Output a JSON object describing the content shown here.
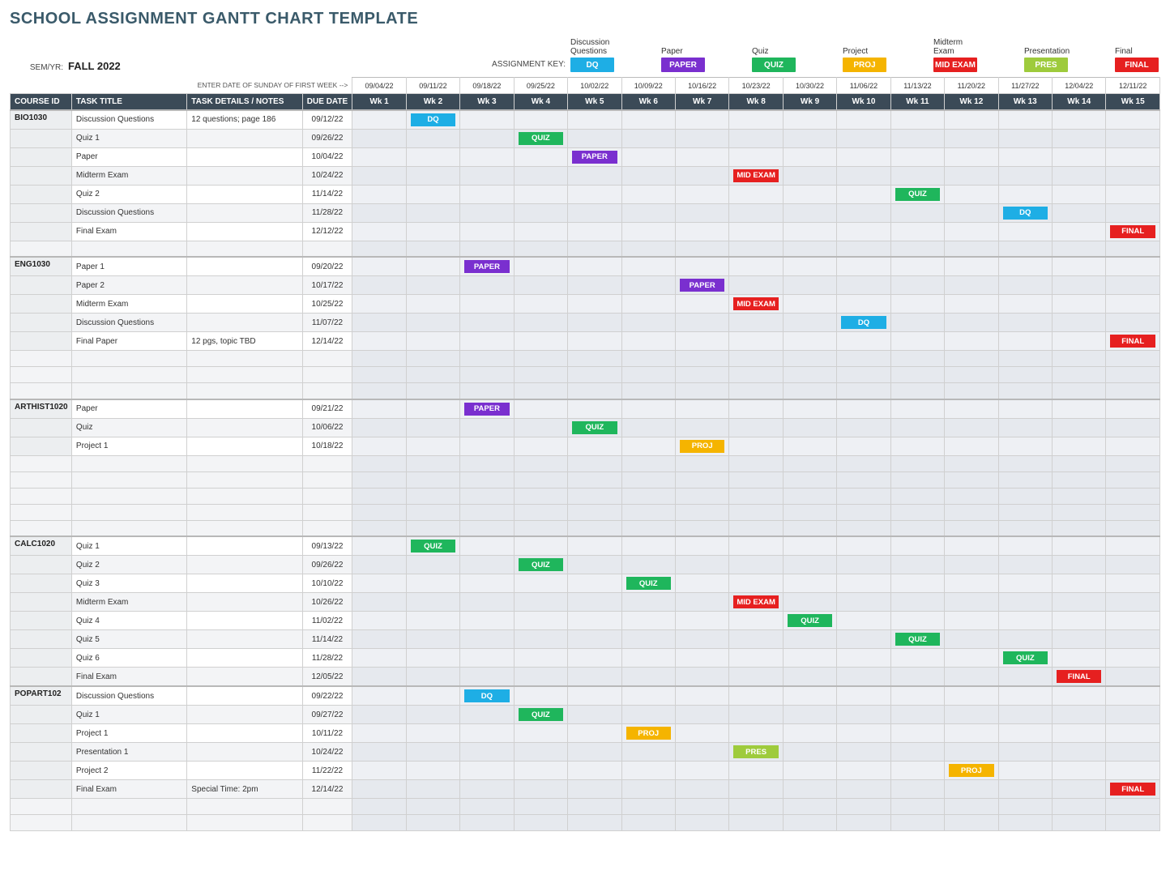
{
  "title": "SCHOOL ASSIGNMENT GANTT CHART TEMPLATE",
  "sem_label": "SEM/YR:",
  "sem_value": "FALL 2022",
  "key_label": "ASSIGNMENT KEY:",
  "first_week_hint": "ENTER DATE OF SUNDAY OF FIRST WEEK -->",
  "assignment_types": [
    {
      "name": "Discussion Questions",
      "code": "DQ",
      "color": "#1eaee5"
    },
    {
      "name": "Paper",
      "code": "PAPER",
      "color": "#7a2fcf"
    },
    {
      "name": "Quiz",
      "code": "QUIZ",
      "color": "#1fb65c"
    },
    {
      "name": "Project",
      "code": "PROJ",
      "color": "#f5b400"
    },
    {
      "name": "Midterm Exam",
      "code": "MID EXAM",
      "color": "#e62020"
    },
    {
      "name": "Presentation",
      "code": "PRES",
      "color": "#9ecb3c"
    },
    {
      "name": "Final",
      "code": "FINAL",
      "color": "#e62020"
    }
  ],
  "headers": {
    "course": "COURSE ID",
    "task": "TASK TITLE",
    "notes": "TASK DETAILS / NOTES",
    "due": "DUE DATE"
  },
  "weeks": [
    {
      "date": "09/04/22",
      "label": "Wk 1"
    },
    {
      "date": "09/11/22",
      "label": "Wk 2"
    },
    {
      "date": "09/18/22",
      "label": "Wk 3"
    },
    {
      "date": "09/25/22",
      "label": "Wk 4"
    },
    {
      "date": "10/02/22",
      "label": "Wk 5"
    },
    {
      "date": "10/09/22",
      "label": "Wk 6"
    },
    {
      "date": "10/16/22",
      "label": "Wk 7"
    },
    {
      "date": "10/23/22",
      "label": "Wk 8"
    },
    {
      "date": "10/30/22",
      "label": "Wk 9"
    },
    {
      "date": "11/06/22",
      "label": "Wk 10"
    },
    {
      "date": "11/13/22",
      "label": "Wk 11"
    },
    {
      "date": "11/20/22",
      "label": "Wk 12"
    },
    {
      "date": "11/27/22",
      "label": "Wk 13"
    },
    {
      "date": "12/04/22",
      "label": "Wk 14"
    },
    {
      "date": "12/11/22",
      "label": "Wk 15"
    }
  ],
  "rows": [
    {
      "sep": true,
      "course": "BIO1030",
      "task": "Discussion Questions",
      "notes": "12 questions; page 186",
      "due": "09/12/22",
      "chips": {
        "2": "DQ"
      }
    },
    {
      "alt": true,
      "task": "Quiz 1",
      "due": "09/26/22",
      "chips": {
        "4": "QUIZ"
      }
    },
    {
      "task": "Paper",
      "due": "10/04/22",
      "chips": {
        "5": "PAPER"
      }
    },
    {
      "alt": true,
      "task": "Midterm Exam",
      "due": "10/24/22",
      "chips": {
        "8": "MID EXAM"
      }
    },
    {
      "task": "Quiz 2",
      "due": "11/14/22",
      "chips": {
        "11": "QUIZ"
      }
    },
    {
      "alt": true,
      "task": "Discussion Questions",
      "due": "11/28/22",
      "chips": {
        "13": "DQ"
      }
    },
    {
      "task": "Final Exam",
      "due": "12/12/22",
      "chips": {
        "15": "FINAL"
      }
    },
    {
      "blank": true,
      "alt": true
    },
    {
      "sep": true,
      "course": "ENG1030",
      "task": "Paper 1",
      "due": "09/20/22",
      "chips": {
        "3": "PAPER"
      }
    },
    {
      "alt": true,
      "task": "Paper 2",
      "due": "10/17/22",
      "chips": {
        "7": "PAPER"
      }
    },
    {
      "task": "Midterm Exam",
      "due": "10/25/22",
      "chips": {
        "8": "MID EXAM"
      }
    },
    {
      "alt": true,
      "task": "Discussion Questions",
      "due": "11/07/22",
      "chips": {
        "10": "DQ"
      }
    },
    {
      "task": "Final Paper",
      "notes": "12 pgs, topic TBD",
      "due": "12/14/22",
      "chips": {
        "15": "FINAL"
      }
    },
    {
      "blank": true,
      "alt": true
    },
    {
      "blank": true
    },
    {
      "blank": true,
      "alt": true
    },
    {
      "sep": true,
      "course": "ARTHIST1020",
      "task": "Paper",
      "due": "09/21/22",
      "chips": {
        "3": "PAPER"
      }
    },
    {
      "alt": true,
      "task": "Quiz",
      "due": "10/06/22",
      "chips": {
        "5": "QUIZ"
      }
    },
    {
      "task": "Project 1",
      "due": "10/18/22",
      "chips": {
        "7": "PROJ"
      }
    },
    {
      "blank": true,
      "alt": true
    },
    {
      "blank": true
    },
    {
      "blank": true,
      "alt": true
    },
    {
      "blank": true
    },
    {
      "blank": true,
      "alt": true
    },
    {
      "sep": true,
      "course": "CALC1020",
      "task": "Quiz 1",
      "due": "09/13/22",
      "chips": {
        "2": "QUIZ"
      }
    },
    {
      "alt": true,
      "task": "Quiz 2",
      "due": "09/26/22",
      "chips": {
        "4": "QUIZ"
      }
    },
    {
      "task": "Quiz 3",
      "due": "10/10/22",
      "chips": {
        "6": "QUIZ"
      }
    },
    {
      "alt": true,
      "task": "Midterm Exam",
      "due": "10/26/22",
      "chips": {
        "8": "MID EXAM"
      }
    },
    {
      "task": "Quiz 4",
      "due": "11/02/22",
      "chips": {
        "9": "QUIZ"
      }
    },
    {
      "alt": true,
      "task": "Quiz 5",
      "due": "11/14/22",
      "chips": {
        "11": "QUIZ"
      }
    },
    {
      "task": "Quiz 6",
      "due": "11/28/22",
      "chips": {
        "13": "QUIZ"
      }
    },
    {
      "alt": true,
      "task": "Final Exam",
      "due": "12/05/22",
      "chips": {
        "14": "FINAL"
      }
    },
    {
      "sep": true,
      "course": "POPART102",
      "task": "Discussion Questions",
      "due": "09/22/22",
      "chips": {
        "3": "DQ"
      }
    },
    {
      "alt": true,
      "task": "Quiz 1",
      "due": "09/27/22",
      "chips": {
        "4": "QUIZ"
      }
    },
    {
      "task": "Project 1",
      "due": "10/11/22",
      "chips": {
        "6": "PROJ"
      }
    },
    {
      "alt": true,
      "task": "Presentation 1",
      "due": "10/24/22",
      "chips": {
        "8": "PRES"
      }
    },
    {
      "task": "Project 2",
      "due": "11/22/22",
      "chips": {
        "12": "PROJ"
      }
    },
    {
      "alt": true,
      "task": "Final Exam",
      "notes": "Special Time: 2pm",
      "due": "12/14/22",
      "chips": {
        "15": "FINAL"
      }
    },
    {
      "blank": true
    },
    {
      "blank": true,
      "alt": true
    }
  ]
}
